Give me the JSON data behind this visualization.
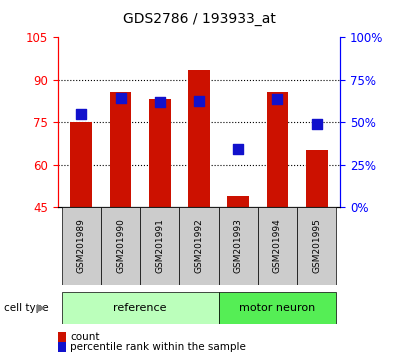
{
  "title": "GDS2786 / 193933_at",
  "categories": [
    "GSM201989",
    "GSM201990",
    "GSM201991",
    "GSM201992",
    "GSM201993",
    "GSM201994",
    "GSM201995"
  ],
  "bar_values": [
    75.0,
    85.5,
    83.0,
    93.5,
    49.0,
    85.5,
    65.0
  ],
  "bar_bottom": 45,
  "percentile_left_values": [
    78.0,
    83.5,
    82.0,
    82.5,
    65.5,
    83.0,
    74.5
  ],
  "bar_color": "#cc1100",
  "dot_color": "#1111cc",
  "ylim_left": [
    45,
    105
  ],
  "ylim_right": [
    0,
    100
  ],
  "yticks_left": [
    45,
    60,
    75,
    90,
    105
  ],
  "ytick_labels_left": [
    "45",
    "60",
    "75",
    "90",
    "105"
  ],
  "yticks_right": [
    0,
    25,
    50,
    75,
    100
  ],
  "ytick_labels_right": [
    "0%",
    "25%",
    "50%",
    "75%",
    "100%"
  ],
  "groups": [
    {
      "label": "reference",
      "indices": [
        0,
        1,
        2,
        3
      ],
      "color": "#bbffbb"
    },
    {
      "label": "motor neuron",
      "indices": [
        4,
        5,
        6
      ],
      "color": "#55ee55"
    }
  ],
  "cell_type_label": "cell type",
  "legend_count_label": "count",
  "legend_pct_label": "percentile rank within the sample",
  "bar_width": 0.55,
  "dot_size": 45,
  "label_bg_color": "#cccccc",
  "grid_yticks": [
    60,
    75,
    90
  ]
}
